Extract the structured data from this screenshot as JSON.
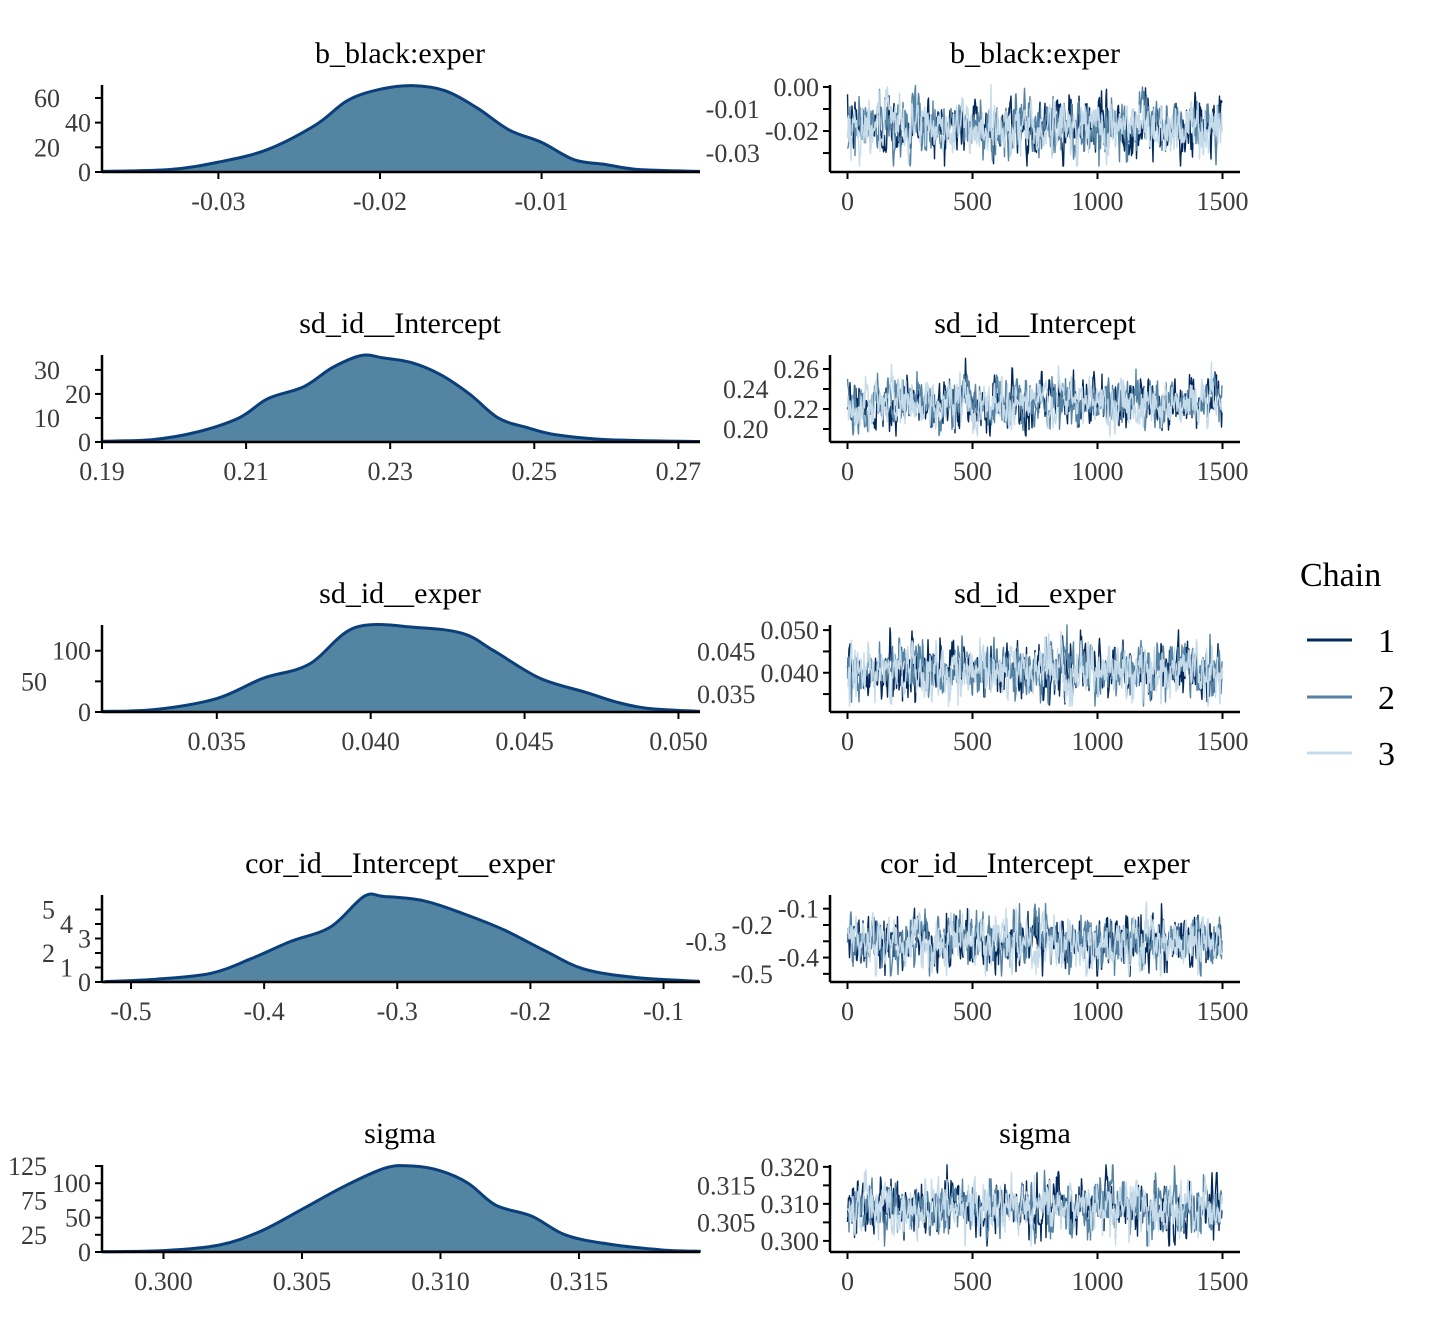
{
  "colors": {
    "density_fill": "#5385a3",
    "density_line": "#0b3f7a",
    "chain_1": "#03295a",
    "chain_2": "#5583a3",
    "chain_3": "#c6dbea",
    "axis": "#000000"
  },
  "legend": {
    "title": "Chain",
    "placement": "right",
    "entries": [
      "1",
      "2",
      "3"
    ]
  },
  "chart_data": [
    {
      "type": "area",
      "title": "b_black:exper",
      "xlim": [
        -0.0372,
        -0.0002
      ],
      "ylim": [
        0,
        70.5
      ],
      "xticks": [
        -0.03,
        -0.02,
        -0.01
      ],
      "xtick_labels": [
        "-0.03",
        "-0.02",
        "-0.01"
      ],
      "yticks": [
        0,
        20,
        40,
        60
      ],
      "ytick_labels": [
        "0",
        "20",
        "40",
        "60"
      ],
      "points": [
        [
          -0.0372,
          0.5
        ],
        [
          -0.033,
          2
        ],
        [
          -0.03,
          8
        ],
        [
          -0.027,
          18
        ],
        [
          -0.024,
          38
        ],
        [
          -0.022,
          58
        ],
        [
          -0.02,
          67
        ],
        [
          -0.018,
          70
        ],
        [
          -0.016,
          66
        ],
        [
          -0.014,
          52
        ],
        [
          -0.012,
          34
        ],
        [
          -0.01,
          24
        ],
        [
          -0.008,
          10
        ],
        [
          -0.006,
          6
        ],
        [
          -0.004,
          2
        ],
        [
          -0.0002,
          0.5
        ]
      ]
    },
    {
      "type": "line",
      "title": "b_black:exper",
      "xlim": [
        -70,
        1570
      ],
      "ylim": [
        -0.0386,
        0.0009
      ],
      "xticks": [
        0,
        500,
        1000,
        1500
      ],
      "xtick_labels": [
        "0",
        "500",
        "1000",
        "1500"
      ],
      "yticks": [
        0,
        -0.01,
        -0.02,
        -0.03
      ],
      "ytick_labels": [
        "0.00",
        "-0.01",
        "-0.02",
        "-0.03"
      ],
      "iterations": 1500,
      "mean": -0.018,
      "sd": 0.0055
    },
    {
      "type": "area",
      "title": "sd_id__Intercept",
      "xlim": [
        0.19,
        0.273
      ],
      "ylim": [
        0,
        36.2
      ],
      "xticks": [
        0.19,
        0.21,
        0.23,
        0.25,
        0.27
      ],
      "xtick_labels": [
        "0.19",
        "0.21",
        "0.23",
        "0.25",
        "0.27"
      ],
      "yticks": [
        0,
        10,
        20,
        30
      ],
      "ytick_labels": [
        "0",
        "10",
        "20",
        "30"
      ],
      "points": [
        [
          0.19,
          0.3
        ],
        [
          0.197,
          1
        ],
        [
          0.203,
          4
        ],
        [
          0.209,
          10
        ],
        [
          0.213,
          18
        ],
        [
          0.218,
          23
        ],
        [
          0.222,
          31
        ],
        [
          0.226,
          36
        ],
        [
          0.229,
          35
        ],
        [
          0.233,
          33
        ],
        [
          0.237,
          28
        ],
        [
          0.241,
          20
        ],
        [
          0.245,
          10
        ],
        [
          0.249,
          6
        ],
        [
          0.253,
          3
        ],
        [
          0.26,
          1
        ],
        [
          0.273,
          0.2
        ]
      ]
    },
    {
      "type": "line",
      "title": "sd_id__Intercept",
      "xlim": [
        -70,
        1570
      ],
      "ylim": [
        0.187,
        0.274
      ],
      "xticks": [
        0,
        500,
        1000,
        1500
      ],
      "xtick_labels": [
        "0",
        "500",
        "1000",
        "1500"
      ],
      "yticks": [
        0.26,
        0.24,
        0.22,
        0.2
      ],
      "ytick_labels": [
        "0.26",
        "0.24",
        "0.22",
        "0.20"
      ],
      "iterations": 1500,
      "mean": 0.227,
      "sd": 0.0105
    },
    {
      "type": "area",
      "title": "sd_id__exper",
      "xlim": [
        0.03127,
        0.0507
      ],
      "ylim": [
        0,
        142
      ],
      "xticks": [
        0.035,
        0.04,
        0.045,
        0.05
      ],
      "xtick_labels": [
        "0.035",
        "0.040",
        "0.045",
        "0.050"
      ],
      "yticks": [
        0,
        50,
        100
      ],
      "ytick_labels": [
        "0",
        "50",
        "100"
      ],
      "points": [
        [
          0.0313,
          1
        ],
        [
          0.033,
          4
        ],
        [
          0.035,
          22
        ],
        [
          0.0365,
          55
        ],
        [
          0.038,
          78
        ],
        [
          0.0395,
          138
        ],
        [
          0.0415,
          138
        ],
        [
          0.043,
          128
        ],
        [
          0.044,
          100
        ],
        [
          0.0455,
          55
        ],
        [
          0.047,
          32
        ],
        [
          0.048,
          16
        ],
        [
          0.049,
          6
        ],
        [
          0.0507,
          1
        ]
      ]
    },
    {
      "type": "line",
      "title": "sd_id__exper",
      "xlim": [
        -70,
        1570
      ],
      "ylim": [
        0.0308,
        0.0512
      ],
      "xticks": [
        0,
        500,
        1000,
        1500
      ],
      "xtick_labels": [
        "0",
        "500",
        "1000",
        "1500"
      ],
      "yticks": [
        0.05,
        0.045,
        0.04,
        0.035
      ],
      "ytick_labels": [
        "0.050",
        "0.045",
        "0.040",
        "0.035"
      ],
      "iterations": 1500,
      "mean": 0.0405,
      "sd": 0.0027
    },
    {
      "type": "area",
      "title": "cor_id__Intercept__exper",
      "xlim": [
        -0.5218,
        -0.0726
      ],
      "ylim": [
        0,
        6.0
      ],
      "xticks": [
        -0.5,
        -0.4,
        -0.3,
        -0.2,
        -0.1
      ],
      "xtick_labels": [
        "-0.5",
        "-0.4",
        "-0.3",
        "-0.2",
        "-0.1"
      ],
      "yticks": [
        0,
        1,
        2,
        3,
        4,
        5
      ],
      "ytick_labels": [
        "0",
        "1",
        "2",
        "3",
        "4",
        "5"
      ],
      "points": [
        [
          -0.52,
          0.02
        ],
        [
          -0.48,
          0.2
        ],
        [
          -0.44,
          0.6
        ],
        [
          -0.41,
          1.6
        ],
        [
          -0.38,
          2.8
        ],
        [
          -0.35,
          3.8
        ],
        [
          -0.325,
          5.9
        ],
        [
          -0.31,
          5.9
        ],
        [
          -0.28,
          5.6
        ],
        [
          -0.25,
          4.7
        ],
        [
          -0.22,
          3.6
        ],
        [
          -0.19,
          2.2
        ],
        [
          -0.16,
          0.9
        ],
        [
          -0.12,
          0.3
        ],
        [
          -0.073,
          0.05
        ]
      ]
    },
    {
      "type": "line",
      "title": "cor_id__Intercept__exper",
      "xlim": [
        -70,
        1570
      ],
      "ylim": [
        -0.55,
        -0.016
      ],
      "xticks": [
        0,
        500,
        1000,
        1500
      ],
      "xtick_labels": [
        "0",
        "500",
        "1000",
        "1500"
      ],
      "yticks": [
        -0.1,
        -0.2,
        -0.3,
        -0.4,
        -0.5
      ],
      "ytick_labels": [
        "-0.1",
        "-0.2",
        "-0.3",
        "-0.4",
        "-0.5"
      ],
      "iterations": 1500,
      "mean": -0.3,
      "sd": 0.068
    },
    {
      "type": "area",
      "title": "sigma",
      "xlim": [
        0.29778,
        0.31937
      ],
      "ylim": [
        0,
        126.5
      ],
      "xticks": [
        0.3,
        0.305,
        0.31,
        0.315
      ],
      "xtick_labels": [
        "0.300",
        "0.305",
        "0.310",
        "0.315"
      ],
      "yticks": [
        0,
        25,
        50,
        75,
        100,
        125
      ],
      "ytick_labels": [
        "0",
        "25",
        "50",
        "75",
        "100",
        "125"
      ],
      "points": [
        [
          0.2978,
          0.5
        ],
        [
          0.3,
          2
        ],
        [
          0.302,
          10
        ],
        [
          0.3035,
          30
        ],
        [
          0.305,
          62
        ],
        [
          0.3065,
          95
        ],
        [
          0.308,
          122
        ],
        [
          0.309,
          125
        ],
        [
          0.31,
          118
        ],
        [
          0.311,
          100
        ],
        [
          0.312,
          68
        ],
        [
          0.3133,
          52
        ],
        [
          0.3145,
          25
        ],
        [
          0.316,
          12
        ],
        [
          0.318,
          3
        ],
        [
          0.3194,
          1
        ]
      ]
    },
    {
      "type": "line",
      "title": "sigma",
      "xlim": [
        -70,
        1570
      ],
      "ylim": [
        0.297,
        0.3205
      ],
      "xticks": [
        0,
        500,
        1000,
        1500
      ],
      "xtick_labels": [
        "0",
        "500",
        "1000",
        "1500"
      ],
      "yticks": [
        0.32,
        0.315,
        0.31,
        0.305,
        0.3
      ],
      "ytick_labels": [
        "0.320",
        "0.315",
        "0.310",
        "0.305",
        "0.300"
      ],
      "iterations": 1500,
      "mean": 0.309,
      "sd": 0.0031
    }
  ]
}
